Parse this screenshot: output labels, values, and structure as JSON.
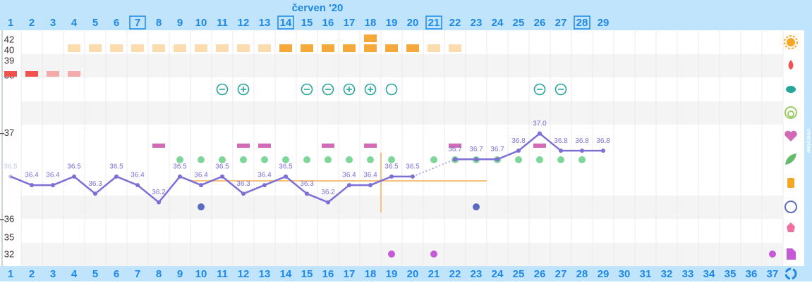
{
  "chart_data": {
    "type": "line",
    "title": "červen '20",
    "overview_tab": "overview",
    "top_days": [
      1,
      2,
      3,
      4,
      5,
      6,
      7,
      8,
      9,
      10,
      11,
      12,
      13,
      14,
      15,
      16,
      17,
      18,
      19,
      20,
      21,
      22,
      23,
      24,
      25,
      26,
      27,
      28,
      29
    ],
    "boxed_days": [
      7,
      14,
      21,
      28
    ],
    "bottom_days": [
      1,
      2,
      3,
      4,
      5,
      6,
      7,
      8,
      9,
      10,
      11,
      12,
      13,
      14,
      15,
      16,
      17,
      18,
      19,
      20,
      21,
      22,
      23,
      24,
      25,
      26,
      27,
      28,
      29,
      30,
      31,
      32,
      33,
      34,
      35,
      36,
      37
    ],
    "side_labels": [
      "42",
      "40",
      "39",
      "38",
      "35",
      "32"
    ],
    "ylim": [
      35.46,
      38.2
    ],
    "yticks": [
      36,
      37
    ],
    "series": [
      {
        "color": "#7c6fd6",
        "values": [
          36.5,
          36.4,
          36.4,
          36.5,
          36.3,
          36.5,
          36.4,
          36.2,
          36.5,
          36.4,
          36.5,
          36.3,
          36.4,
          36.5,
          36.3,
          36.2,
          36.4,
          36.4,
          36.5,
          36.5,
          null,
          36.7,
          36.7,
          36.7,
          36.8,
          37.0,
          36.8,
          36.8,
          36.8
        ],
        "value_labels": [
          "36.5",
          "36.4",
          "36.4",
          "36.5",
          "36.3",
          "36.5",
          "36.4",
          "36.2",
          "36.5",
          "36.4",
          "36.5",
          "36.3",
          "36.4",
          "36.5",
          "36.3",
          "36.2",
          "36.4",
          "36.4",
          "36.5",
          "36.5",
          null,
          "36.7",
          "36.7",
          "36.7",
          "36.8",
          "37.0",
          "36.8",
          "36.8",
          "36.8"
        ]
      }
    ],
    "coverline": {
      "value": 36.45,
      "from_day": 9.5,
      "to_day": 23.5,
      "color": "#f7c27e"
    },
    "ovulation_line_day": 18.5,
    "cervical": {
      "days": [
        4,
        5,
        6,
        7,
        8,
        9,
        10,
        11,
        12,
        13,
        14,
        15,
        16,
        17,
        18,
        19,
        20,
        21,
        22
      ],
      "levels": [
        1,
        1,
        1,
        1,
        1,
        1,
        1,
        1,
        1,
        1,
        2,
        2,
        2,
        2,
        3,
        2,
        2,
        1,
        1
      ]
    },
    "bleeding": {
      "days": [
        1,
        2,
        3,
        4
      ],
      "levels": [
        2,
        2,
        1,
        1
      ],
      "color": "#ef5350"
    },
    "tests": {
      "days": [
        11,
        12,
        15,
        16,
        17,
        18,
        19,
        26,
        27
      ],
      "results": [
        "-",
        "+",
        "-",
        "-",
        "+",
        "+",
        "o",
        "-",
        "-"
      ],
      "color": "#26a69a"
    },
    "intercourse": {
      "days": [
        8,
        12,
        13,
        16,
        18,
        22,
        26
      ],
      "color": "#d16bb5"
    },
    "leaf": {
      "days": [
        9,
        10,
        11,
        12,
        13,
        14,
        15,
        16,
        17,
        18,
        19,
        21,
        22,
        23,
        24,
        25,
        26,
        27,
        28
      ],
      "color": "#7ed69a"
    },
    "mood": {
      "days": [
        10,
        23
      ],
      "color": "#5c6bc0"
    },
    "notes": {
      "days": [
        19,
        21,
        37
      ],
      "color": "#c659d6"
    }
  }
}
